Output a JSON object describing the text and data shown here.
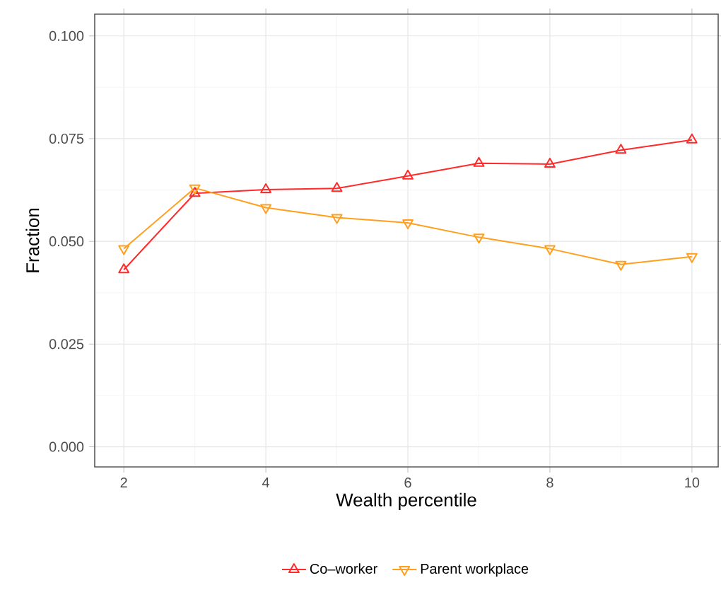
{
  "chart_data": {
    "type": "line",
    "xlabel": "Wealth percentile",
    "ylabel": "Fraction",
    "x": [
      2,
      3,
      4,
      5,
      6,
      7,
      8,
      9,
      10
    ],
    "series": [
      {
        "name": "Co–worker",
        "color": "#ff2a2a",
        "marker": "triangle",
        "values": [
          0.0431,
          0.0617,
          0.0626,
          0.0629,
          0.0659,
          0.069,
          0.0688,
          0.0722,
          0.0747
        ]
      },
      {
        "name": "Parent workplace",
        "color": "#ff9f1c",
        "marker": "triangle down",
        "values": [
          0.0482,
          0.063,
          0.0582,
          0.0558,
          0.0545,
          0.051,
          0.0482,
          0.0444,
          0.0463
        ]
      }
    ],
    "xlim": [
      1.59,
      10.37
    ],
    "ylim": [
      -0.0049,
      0.1053
    ],
    "xticks": [
      2,
      4,
      6,
      8,
      10
    ],
    "yticks": [
      {
        "value": 0,
        "label": "0.000"
      },
      {
        "value": 0.025,
        "label": "0.025"
      },
      {
        "value": 0.05,
        "label": "0.050"
      },
      {
        "value": 0.075,
        "label": "0.075"
      },
      {
        "value": 0.1,
        "label": "0.100"
      }
    ],
    "grid": true,
    "legend": "bottom",
    "line_style": "solid"
  }
}
